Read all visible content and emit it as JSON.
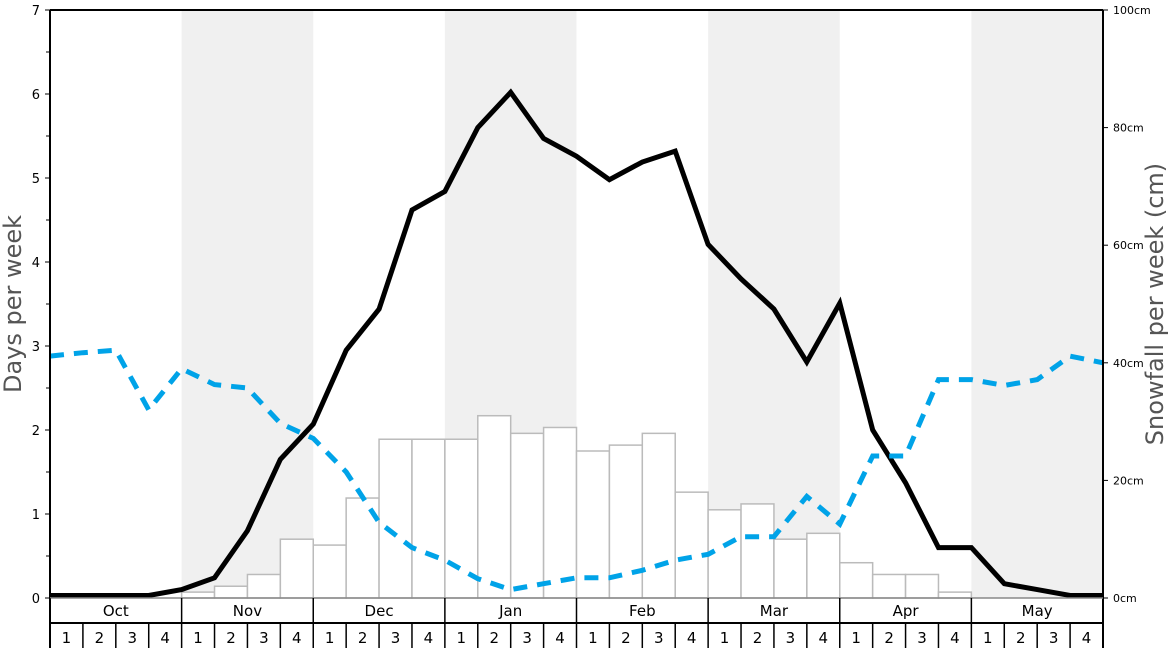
{
  "chart_data": {
    "type": "bar+line",
    "ylabel_left": "Days per week",
    "ylabel_right": "Snowfall per week (cm)",
    "ylim_left": [
      0,
      7
    ],
    "ylim_right": [
      0,
      100
    ],
    "left_ticks": [
      "0",
      "1",
      "2",
      "3",
      "4",
      "5",
      "6",
      "7"
    ],
    "right_ticks": [
      "0cm",
      "20cm",
      "40cm",
      "60cm",
      "80cm",
      "100cm"
    ],
    "months": [
      "Oct",
      "Nov",
      "Dec",
      "Jan",
      "Feb",
      "Mar",
      "Apr",
      "May"
    ],
    "weeks": [
      "1",
      "2",
      "3",
      "4"
    ],
    "shaded_months": [
      "Nov",
      "Jan",
      "Mar",
      "May"
    ],
    "colors": {
      "solid_line": "#000000",
      "dashed_line": "#00a3e8",
      "bar_fill": "#ffffff",
      "bar_stroke": "#bbbbbb",
      "shade": "#f0f0f0"
    },
    "snowfall_cm": [
      0,
      0,
      0,
      0,
      1,
      2,
      4,
      10,
      9,
      17,
      27,
      27,
      27,
      31,
      28,
      29,
      25,
      26,
      28,
      18,
      15,
      16,
      10,
      11,
      6,
      4,
      4,
      1,
      0,
      0,
      0,
      0
    ],
    "series": [
      {
        "style": "solid",
        "axis": "left",
        "values": [
          0.03,
          0.03,
          0.03,
          0.03,
          0.1,
          0.24,
          0.8,
          1.65,
          2.07,
          2.95,
          3.44,
          4.62,
          4.84,
          5.6,
          6.02,
          5.47,
          5.26,
          4.98,
          5.19,
          5.32,
          4.21,
          3.8,
          3.44,
          2.81,
          3.51,
          2.0,
          1.37,
          0.6,
          0.6,
          0.17,
          0.1,
          0.03,
          0.03
        ]
      },
      {
        "style": "dashed",
        "axis": "left",
        "values": [
          2.88,
          2.92,
          2.95,
          2.24,
          2.73,
          2.54,
          2.5,
          2.08,
          1.9,
          1.5,
          0.9,
          0.6,
          0.45,
          0.23,
          0.1,
          0.17,
          0.24,
          0.24,
          0.33,
          0.45,
          0.52,
          0.73,
          0.73,
          1.21,
          0.88,
          1.69,
          1.69,
          2.6,
          2.6,
          2.53,
          2.6,
          2.88,
          2.8
        ]
      }
    ]
  }
}
